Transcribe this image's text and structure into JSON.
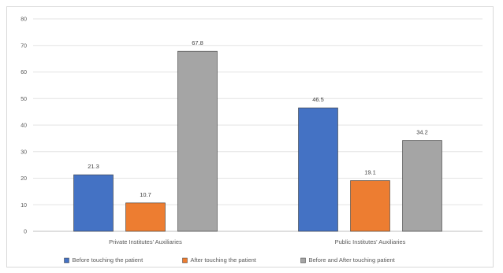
{
  "chart_data": {
    "type": "bar",
    "title": "",
    "xlabel": "",
    "ylabel": "",
    "ylim": [
      0,
      80
    ],
    "yticks": [
      0,
      10,
      20,
      30,
      40,
      50,
      60,
      70,
      80
    ],
    "categories": [
      "Private Institutes' Auxiliaries",
      "Public Institutes' Auxiliaries"
    ],
    "series": [
      {
        "name": "Before touching the patient",
        "values": [
          21.3,
          46.5
        ],
        "labels": [
          "21.3",
          "46.5"
        ],
        "color": "#4472c4"
      },
      {
        "name": "After touching the patient",
        "values": [
          10.7,
          19.1
        ],
        "labels": [
          "10.7",
          "19.1"
        ],
        "color": "#ed7d31"
      },
      {
        "name": "Before and After touching patient",
        "values": [
          67.8,
          34.2
        ],
        "labels": [
          "67.8",
          "34.2"
        ],
        "color": "#a5a5a5"
      }
    ],
    "grid": true,
    "legend_position": "bottom"
  }
}
